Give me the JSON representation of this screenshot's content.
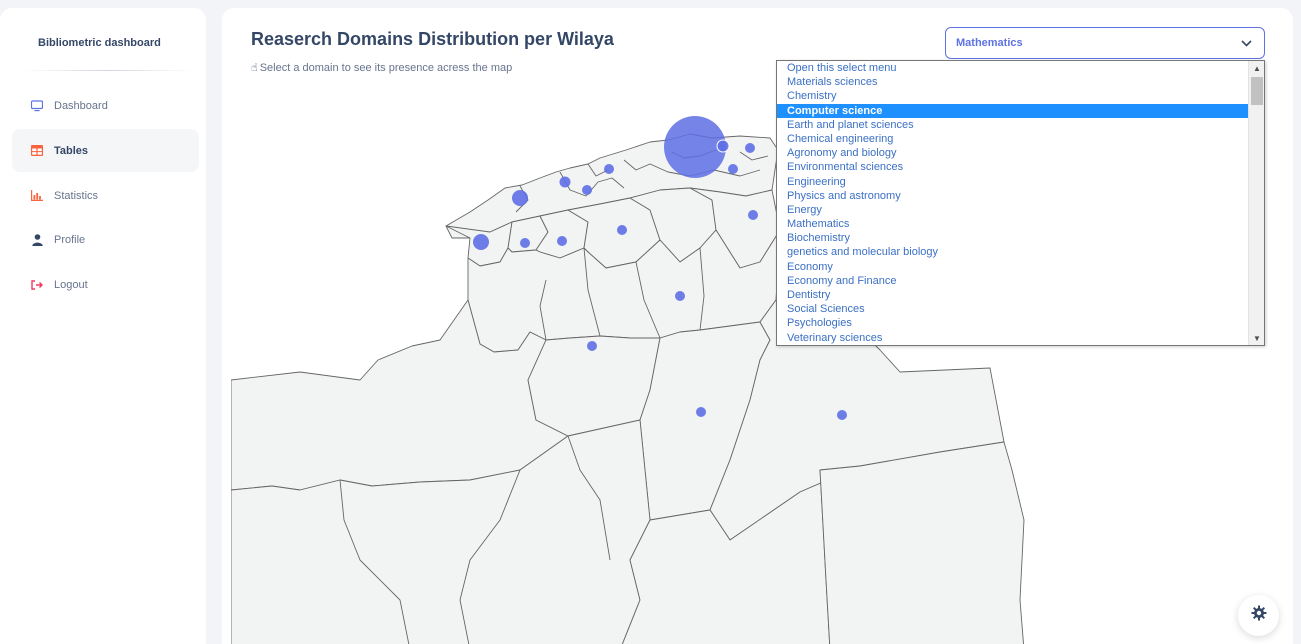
{
  "sidebar": {
    "brand": "Bibliometric dashboard",
    "items": [
      {
        "label": "Dashboard",
        "icon": "desktop-icon",
        "color": "#5e72e4"
      },
      {
        "label": "Tables",
        "icon": "table-icon",
        "color": "#fb6340",
        "active": true
      },
      {
        "label": "Statistics",
        "icon": "chart-icon",
        "color": "#fb6340"
      },
      {
        "label": "Profile",
        "icon": "user-icon",
        "color": "#344767"
      },
      {
        "label": "Logout",
        "icon": "logout-icon",
        "color": "#f5365c"
      }
    ]
  },
  "main": {
    "title": "Reaserch Domains Distribution per Wilaya",
    "subtitle": "Select a domain to see its presence acress the map",
    "subtitle_icon": "pointing-hand-icon"
  },
  "domain_select": {
    "value": "Mathematics",
    "selected_option": "Computer science",
    "options": [
      "Open this select menu",
      "Materials sciences",
      "Chemistry",
      "Computer science",
      "Earth and planet sciences",
      "Chemical engineering",
      "Agronomy and biology",
      "Environmental sciences",
      "Engineering",
      "Physics and astronomy",
      "Energy",
      "Mathematics",
      "Biochemistry",
      "genetics and molecular biology",
      "Economy",
      "Economy and Finance",
      "Dentistry",
      "Social Sciences",
      "Psychologies",
      "Veterinary sciences"
    ]
  },
  "map": {
    "bubble_color": "#5e6fe4",
    "region_fill": "#f2f3f3",
    "border_color": "#666666"
  },
  "settings_icon": "gear-icon",
  "colors": {
    "accent": "#5e72e4",
    "text": "#344767",
    "muted": "#67748e",
    "option_text": "#3b70c4",
    "option_selected_bg": "#1e90ff"
  }
}
